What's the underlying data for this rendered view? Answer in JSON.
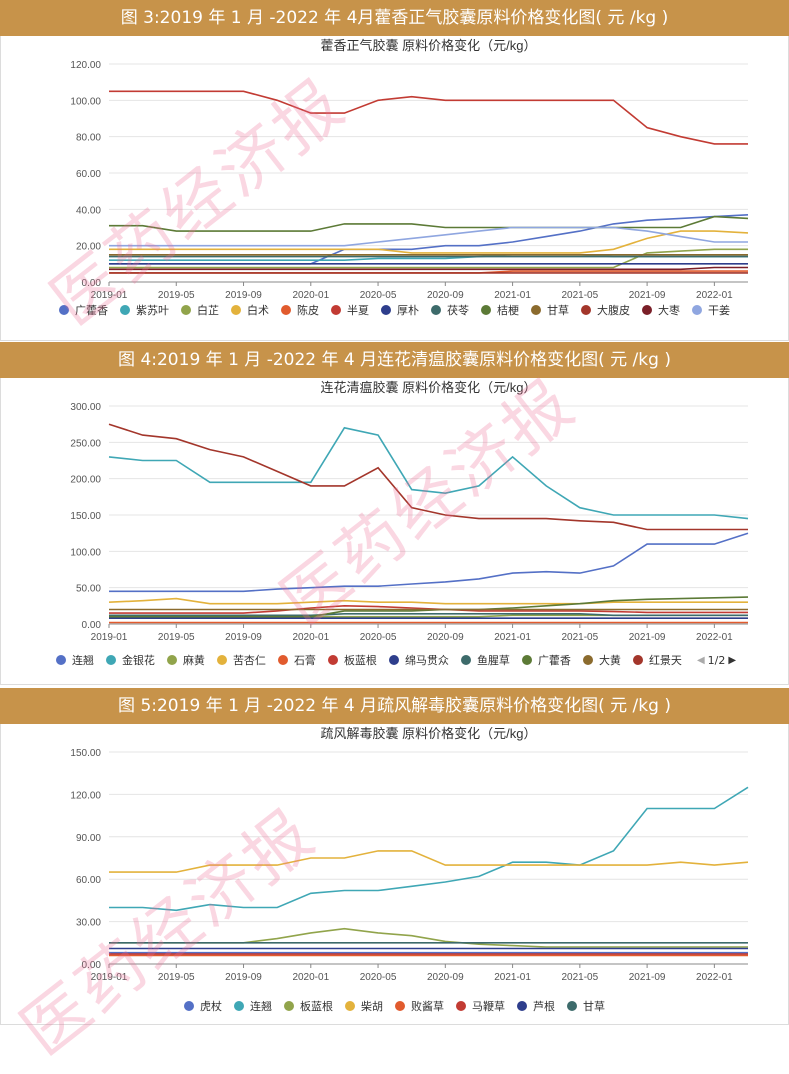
{
  "charts": [
    {
      "header": "图 3:2019 年 1 月 -2022 年 4月藿香正气胶囊原料价格变化图( 元 /kg )",
      "title": "藿香正气胶囊 原料价格变化（元/kg）",
      "chart_data": {
        "type": "line",
        "title": "藿香正气胶囊 原料价格变化（元/kg）",
        "x": [
          "2019-01",
          "2019-03",
          "2019-05",
          "2019-07",
          "2019-09",
          "2019-11",
          "2020-01",
          "2020-03",
          "2020-05",
          "2020-07",
          "2020-09",
          "2020-11",
          "2021-01",
          "2021-03",
          "2021-05",
          "2021-07",
          "2021-09",
          "2021-11",
          "2022-01",
          "2022-03"
        ],
        "xticks": [
          "2019-01",
          "2019-05",
          "2019-09",
          "2020-01",
          "2020-05",
          "2020-09",
          "2021-01",
          "2021-05",
          "2021-09",
          "2022-01"
        ],
        "ylim": [
          0,
          120
        ],
        "yticks": [
          "0.00",
          "20.00",
          "40.00",
          "60.00",
          "80.00",
          "100.00",
          "120.00"
        ],
        "series": [
          {
            "name": "广藿香",
            "color": "#5470c6",
            "values": [
              10,
              10,
              10,
              10,
              10,
              10,
              10,
              18,
              18,
              18,
              20,
              20,
              22,
              25,
              28,
              32,
              34,
              35,
              36,
              37
            ]
          },
          {
            "name": "紫苏叶",
            "color": "#3fa7b5",
            "values": [
              12,
              12,
              12,
              12,
              12,
              12,
              12,
              12,
              13,
              13,
              13,
              14,
              15,
              15,
              15,
              14,
              14,
              14,
              14,
              14
            ]
          },
          {
            "name": "白芷",
            "color": "#91a44b",
            "values": [
              8,
              8,
              8,
              8,
              8,
              8,
              8,
              8,
              8,
              8,
              8,
              8,
              8,
              8,
              8,
              8,
              16,
              17,
              18,
              18
            ]
          },
          {
            "name": "白术",
            "color": "#e3b23c",
            "values": [
              18,
              18,
              18,
              18,
              18,
              18,
              18,
              18,
              18,
              16,
              16,
              16,
              16,
              16,
              16,
              18,
              24,
              28,
              28,
              27
            ]
          },
          {
            "name": "陈皮",
            "color": "#e15b2e",
            "values": [
              5,
              5,
              5,
              5,
              5,
              5,
              5,
              5,
              5,
              5,
              5,
              5,
              6,
              6,
              6,
              6,
              6,
              6,
              6,
              6
            ]
          },
          {
            "name": "半夏",
            "color": "#c23b33",
            "values": [
              105,
              105,
              105,
              105,
              105,
              100,
              93,
              93,
              100,
              102,
              100,
              100,
              100,
              100,
              100,
              100,
              85,
              80,
              76,
              76
            ]
          },
          {
            "name": "厚朴",
            "color": "#2e3e8c",
            "values": [
              10,
              10,
              10,
              10,
              10,
              10,
              10,
              10,
              10,
              10,
              10,
              10,
              10,
              10,
              10,
              10,
              10,
              10,
              10,
              10
            ]
          },
          {
            "name": "茯苓",
            "color": "#3d6b6b",
            "values": [
              14,
              14,
              14,
              14,
              14,
              14,
              14,
              14,
              14,
              14,
              14,
              14,
              14,
              14,
              14,
              14,
              14,
              14,
              14,
              14
            ]
          },
          {
            "name": "桔梗",
            "color": "#5c7a36",
            "values": [
              31,
              31,
              28,
              28,
              28,
              28,
              28,
              32,
              32,
              32,
              30,
              30,
              30,
              30,
              30,
              30,
              30,
              30,
              36,
              35
            ]
          },
          {
            "name": "甘草",
            "color": "#8b6b2e",
            "values": [
              15,
              15,
              15,
              15,
              15,
              15,
              15,
              15,
              15,
              15,
              15,
              15,
              15,
              15,
              15,
              15,
              15,
              15,
              15,
              15
            ]
          },
          {
            "name": "大腹皮",
            "color": "#a3362b",
            "values": [
              5,
              5,
              5,
              5,
              5,
              5,
              5,
              5,
              5,
              5,
              5,
              5,
              5,
              5,
              5,
              5,
              5,
              5,
              5,
              5
            ]
          },
          {
            "name": "大枣",
            "color": "#7a1f28",
            "values": [
              7,
              7,
              7,
              7,
              7,
              7,
              7,
              7,
              7,
              7,
              7,
              7,
              7,
              7,
              7,
              7,
              7,
              7,
              8,
              8
            ]
          },
          {
            "name": "干姜",
            "color": "#8fa6e0",
            "values": [
              20,
              20,
              20,
              20,
              20,
              20,
              20,
              20,
              22,
              24,
              26,
              28,
              30,
              30,
              30,
              30,
              28,
              25,
              22,
              22
            ]
          }
        ]
      }
    },
    {
      "header": "图 4:2019 年 1 月 -2022 年 4 月连花清瘟胶囊原料价格变化图( 元 /kg )",
      "title": "连花清瘟胶囊 原料价格变化（元/kg）",
      "pager": "1/2",
      "chart_data": {
        "type": "line",
        "title": "连花清瘟胶囊 原料价格变化（元/kg）",
        "x": [
          "2019-01",
          "2019-03",
          "2019-05",
          "2019-07",
          "2019-09",
          "2019-11",
          "2020-01",
          "2020-03",
          "2020-05",
          "2020-07",
          "2020-09",
          "2020-11",
          "2021-01",
          "2021-03",
          "2021-05",
          "2021-07",
          "2021-09",
          "2021-11",
          "2022-01",
          "2022-03"
        ],
        "xticks": [
          "2019-01",
          "2019-05",
          "2019-09",
          "2020-01",
          "2020-05",
          "2020-09",
          "2021-01",
          "2021-05",
          "2021-09",
          "2022-01"
        ],
        "ylim": [
          0,
          300
        ],
        "yticks": [
          "0.00",
          "50.00",
          "100.00",
          "150.00",
          "200.00",
          "250.00",
          "300.00"
        ],
        "series": [
          {
            "name": "连翘",
            "color": "#5470c6",
            "values": [
              45,
              45,
              45,
              45,
              45,
              48,
              50,
              52,
              52,
              55,
              58,
              62,
              70,
              72,
              70,
              80,
              110,
              110,
              110,
              125
            ]
          },
          {
            "name": "金银花",
            "color": "#3fa7b5",
            "values": [
              230,
              225,
              225,
              195,
              195,
              195,
              195,
              270,
              260,
              185,
              180,
              190,
              230,
              190,
              160,
              150,
              150,
              150,
              150,
              145
            ]
          },
          {
            "name": "麻黄",
            "color": "#91a44b",
            "values": [
              10,
              10,
              10,
              10,
              10,
              10,
              10,
              10,
              10,
              10,
              10,
              10,
              12,
              12,
              12,
              12,
              12,
              12,
              12,
              12
            ]
          },
          {
            "name": "苦杏仁",
            "color": "#e3b23c",
            "values": [
              30,
              32,
              35,
              28,
              28,
              28,
              30,
              32,
              30,
              30,
              28,
              28,
              28,
              28,
              28,
              30,
              30,
              30,
              30,
              30
            ]
          },
          {
            "name": "石膏",
            "color": "#e15b2e",
            "values": [
              2,
              2,
              2,
              2,
              2,
              2,
              2,
              2,
              2,
              2,
              2,
              2,
              2,
              2,
              2,
              2,
              2,
              2,
              2,
              2
            ]
          },
          {
            "name": "板蓝根",
            "color": "#c23b33",
            "values": [
              15,
              15,
              15,
              15,
              15,
              18,
              22,
              25,
              24,
              22,
              20,
              18,
              18,
              18,
              18,
              17,
              16,
              16,
              16,
              16
            ]
          },
          {
            "name": "绵马贯众",
            "color": "#2e3e8c",
            "values": [
              8,
              8,
              8,
              8,
              8,
              8,
              8,
              8,
              8,
              8,
              8,
              8,
              8,
              8,
              8,
              8,
              8,
              8,
              8,
              8
            ]
          },
          {
            "name": "鱼腥草",
            "color": "#3d6b6b",
            "values": [
              12,
              12,
              12,
              12,
              12,
              12,
              12,
              14,
              14,
              14,
              14,
              14,
              14,
              14,
              14,
              12,
              12,
              12,
              12,
              12
            ]
          },
          {
            "name": "广藿香",
            "color": "#5c7a36",
            "values": [
              10,
              10,
              10,
              10,
              10,
              10,
              10,
              18,
              18,
              18,
              20,
              20,
              22,
              25,
              28,
              32,
              34,
              35,
              36,
              37
            ]
          },
          {
            "name": "大黄",
            "color": "#8b6b2e",
            "values": [
              20,
              20,
              20,
              20,
              20,
              20,
              20,
              20,
              20,
              20,
              20,
              20,
              20,
              20,
              20,
              20,
              20,
              20,
              20,
              20
            ]
          },
          {
            "name": "红景天",
            "color": "#a3362b",
            "values": [
              275,
              260,
              255,
              240,
              230,
              210,
              190,
              190,
              215,
              160,
              150,
              145,
              145,
              145,
              142,
              140,
              130,
              130,
              130,
              130
            ]
          }
        ]
      }
    },
    {
      "header": "图 5:2019 年 1 月 -2022 年 4 月疏风解毒胶囊原料价格变化图( 元 /kg )",
      "title": "疏风解毒胶囊 原料价格变化（元/kg）",
      "chart_data": {
        "type": "line",
        "title": "疏风解毒胶囊 原料价格变化（元/kg）",
        "x": [
          "2019-01",
          "2019-03",
          "2019-05",
          "2019-07",
          "2019-09",
          "2019-11",
          "2020-01",
          "2020-03",
          "2020-05",
          "2020-07",
          "2020-09",
          "2020-11",
          "2021-01",
          "2021-03",
          "2021-05",
          "2021-07",
          "2021-09",
          "2021-11",
          "2022-01",
          "2022-03"
        ],
        "xticks": [
          "2019-01",
          "2019-05",
          "2019-09",
          "2020-01",
          "2020-05",
          "2020-09",
          "2021-01",
          "2021-05",
          "2021-09",
          "2022-01"
        ],
        "ylim": [
          0,
          150
        ],
        "yticks": [
          "0.00",
          "30.00",
          "60.00",
          "90.00",
          "120.00",
          "150.00"
        ],
        "series": [
          {
            "name": "虎杖",
            "color": "#5470c6",
            "values": [
              8,
              8,
              8,
              8,
              8,
              8,
              8,
              8,
              8,
              8,
              8,
              8,
              8,
              8,
              8,
              8,
              8,
              8,
              8,
              8
            ]
          },
          {
            "name": "连翘",
            "color": "#3fa7b5",
            "values": [
              40,
              40,
              38,
              42,
              40,
              40,
              50,
              52,
              52,
              55,
              58,
              62,
              72,
              72,
              70,
              80,
              110,
              110,
              110,
              125
            ]
          },
          {
            "name": "板蓝根",
            "color": "#91a44b",
            "values": [
              15,
              15,
              15,
              15,
              15,
              18,
              22,
              25,
              22,
              20,
              16,
              14,
              13,
              12,
              12,
              12,
              12,
              12,
              12,
              12
            ]
          },
          {
            "name": "柴胡",
            "color": "#e3b23c",
            "values": [
              65,
              65,
              65,
              70,
              70,
              70,
              75,
              75,
              80,
              80,
              70,
              70,
              70,
              70,
              70,
              70,
              70,
              72,
              70,
              72
            ]
          },
          {
            "name": "败酱草",
            "color": "#e15b2e",
            "values": [
              6,
              6,
              6,
              6,
              6,
              6,
              6,
              6,
              6,
              6,
              6,
              6,
              6,
              6,
              6,
              6,
              6,
              6,
              6,
              6
            ]
          },
          {
            "name": "马鞭草",
            "color": "#c23b33",
            "values": [
              7,
              7,
              7,
              7,
              7,
              7,
              7,
              7,
              7,
              7,
              7,
              7,
              7,
              7,
              7,
              7,
              7,
              7,
              7,
              7
            ]
          },
          {
            "name": "芦根",
            "color": "#2e3e8c",
            "values": [
              11,
              11,
              11,
              11,
              11,
              11,
              11,
              11,
              11,
              11,
              11,
              11,
              11,
              11,
              11,
              11,
              11,
              11,
              11,
              11
            ]
          },
          {
            "name": "甘草",
            "color": "#3d6b6b",
            "values": [
              15,
              15,
              15,
              15,
              15,
              15,
              15,
              15,
              15,
              15,
              15,
              15,
              15,
              15,
              15,
              15,
              15,
              15,
              15,
              15
            ]
          }
        ]
      }
    }
  ],
  "watermark": "医药经济报"
}
